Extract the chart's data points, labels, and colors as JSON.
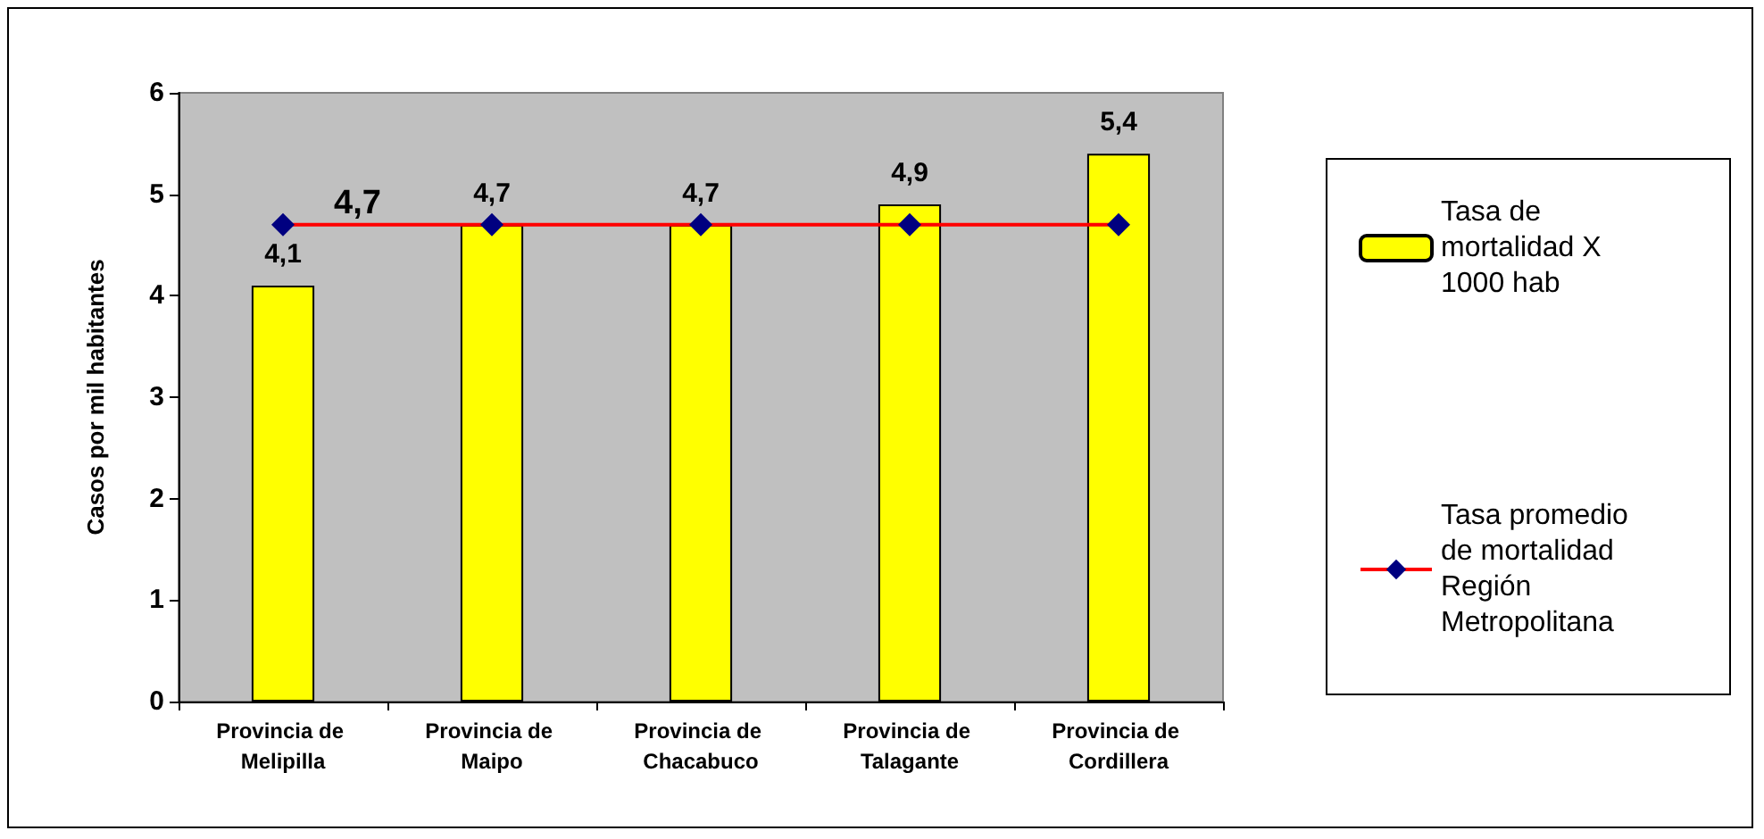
{
  "chart_data": {
    "type": "bar",
    "ylabel": "Casos por mil habitantes",
    "categories": [
      "Provincia de Melipilla",
      "Provincia de Maipo",
      "Provincia de Chacabuco",
      "Provincia de Talagante",
      "Provincia de Cordillera"
    ],
    "series": [
      {
        "name": "Tasa de mortalidad X 1000 hab",
        "color": "#ffff00",
        "values": [
          4.1,
          4.7,
          4.7,
          4.9,
          5.4
        ],
        "value_labels": [
          "4,1",
          "4,7",
          "4,7",
          "4,9",
          "5,4"
        ]
      },
      {
        "name": "Tasa promedio de mortalidad Región Metropolitana",
        "type": "line",
        "color": "#ff0000",
        "values": [
          4.7,
          4.7,
          4.7,
          4.7,
          4.7
        ],
        "value_labels": [
          "4,7",
          null,
          null,
          null,
          null
        ]
      }
    ],
    "ylim": [
      0,
      6
    ],
    "yticks": [
      0,
      1,
      2,
      3,
      4,
      5,
      6
    ],
    "grid": false,
    "legend": "right",
    "marker": "diamond",
    "line_style": "solid"
  }
}
